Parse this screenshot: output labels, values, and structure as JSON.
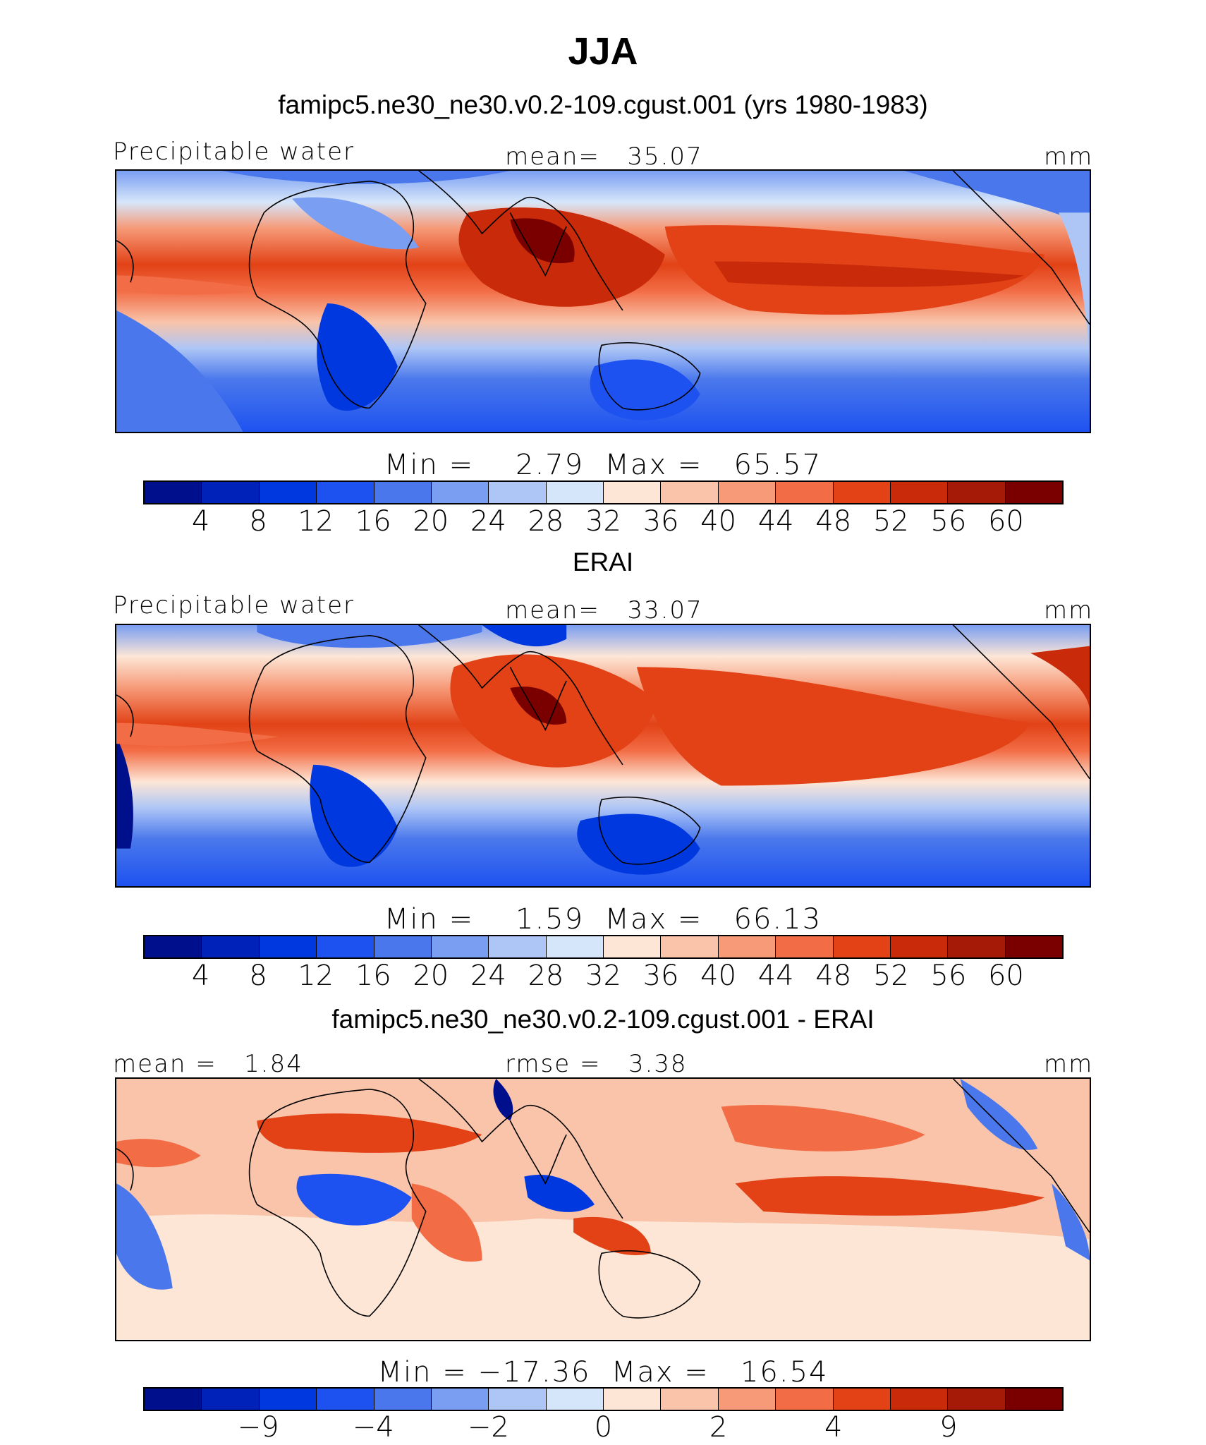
{
  "title": "JJA",
  "colors": {
    "precip": [
      "#000f8c",
      "#0022b8",
      "#0038e0",
      "#1e52f0",
      "#4a78ec",
      "#7a9ef2",
      "#aec6f6",
      "#d6e6fa",
      "#fde6d6",
      "#f9c4aa",
      "#f69a78",
      "#f26c45",
      "#e24216",
      "#c92a0a",
      "#a51a06",
      "#7a0000"
    ],
    "diff": [
      "#000f8c",
      "#0022b8",
      "#0038e0",
      "#1e52f0",
      "#4a78ec",
      "#7a9ef2",
      "#aec6f6",
      "#d6e6fa",
      "#fde6d6",
      "#f9c4aa",
      "#f69a78",
      "#f26c45",
      "#e24216",
      "#c92a0a",
      "#a51a06",
      "#7a0000"
    ]
  },
  "panel1": {
    "header": "famipc5.ne30_ne30.v0.2-109.cgust.001 (yrs 1980-1983)",
    "left_label": "Precipitable water",
    "center_label": "mean=   35.07",
    "units": "mm",
    "minmax": "Min =    2.79  Max =   65.57",
    "ticks": [
      "4",
      "8",
      "12",
      "16",
      "20",
      "24",
      "28",
      "32",
      "36",
      "40",
      "44",
      "48",
      "52",
      "56",
      "60"
    ]
  },
  "panel2": {
    "header": "ERAI",
    "left_label": "Precipitable water",
    "center_label": "mean=   33.07",
    "units": "mm",
    "minmax": "Min =    1.59  Max =   66.13",
    "ticks": [
      "4",
      "8",
      "12",
      "16",
      "20",
      "24",
      "28",
      "32",
      "36",
      "40",
      "44",
      "48",
      "52",
      "56",
      "60"
    ]
  },
  "panel3": {
    "header": "famipc5.ne30_ne30.v0.2-109.cgust.001 - ERAI",
    "left_label": "mean =   1.84",
    "center_label": "rmse =   3.38",
    "units": "mm",
    "minmax": "Min = −17.36  Max =   16.54",
    "ticks": [
      "−9",
      "−4",
      "−2",
      "0",
      "2",
      "4",
      "9"
    ]
  }
}
